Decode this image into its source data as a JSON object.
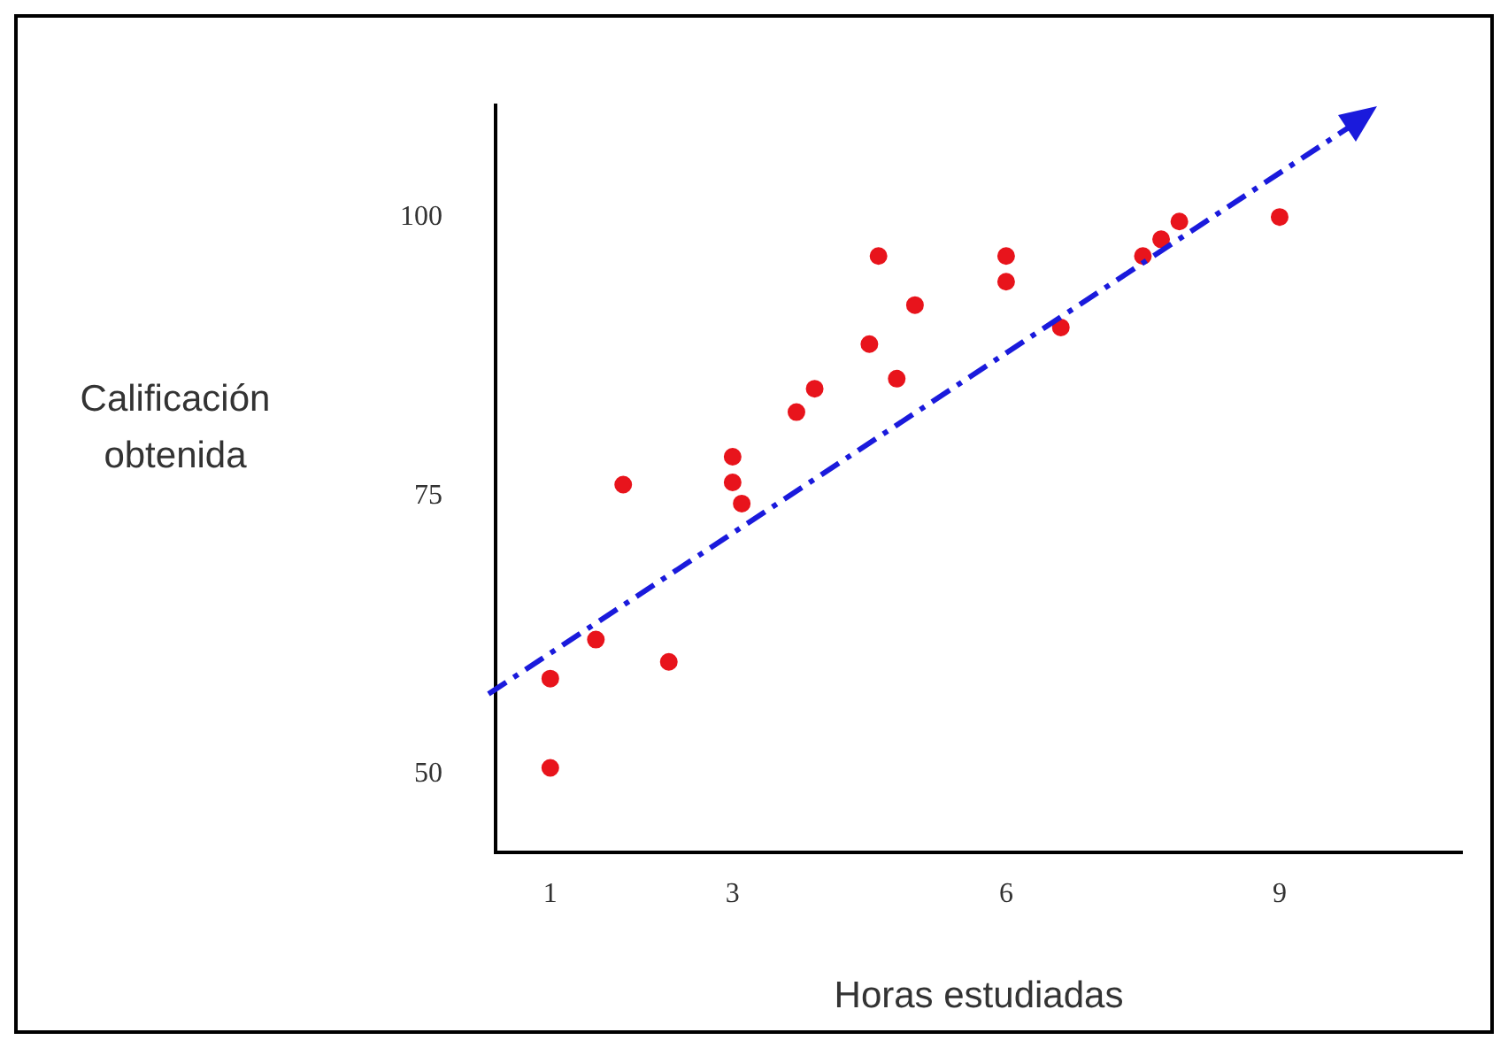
{
  "chart_data": {
    "type": "scatter",
    "xlabel": "Horas estudiadas",
    "ylabel": "Calificación obtenida",
    "xlim": [
      0.4,
      11
    ],
    "xticks": [
      1,
      3,
      6,
      9
    ],
    "ylim": [
      43,
      110
    ],
    "yticks": [
      50,
      75,
      100
    ],
    "grid": false,
    "legend": false,
    "marker": "circle",
    "series": [
      {
        "color": "#e8141c",
        "x": [
          1,
          1,
          1.5,
          1.8,
          2.3,
          3,
          3,
          3.1,
          3.7,
          3.9,
          4.5,
          4.6,
          4.8,
          5,
          6,
          6,
          6.6,
          7.5,
          7.7,
          7.9,
          9
        ],
        "values": [
          58.6,
          50.6,
          62.1,
          76,
          60.1,
          78.5,
          76.2,
          74.3,
          82.5,
          84.6,
          88.6,
          96.5,
          85.5,
          92.1,
          96.5,
          94.2,
          90.1,
          96.5,
          98,
          99.6,
          100
        ]
      }
    ]
  }
}
